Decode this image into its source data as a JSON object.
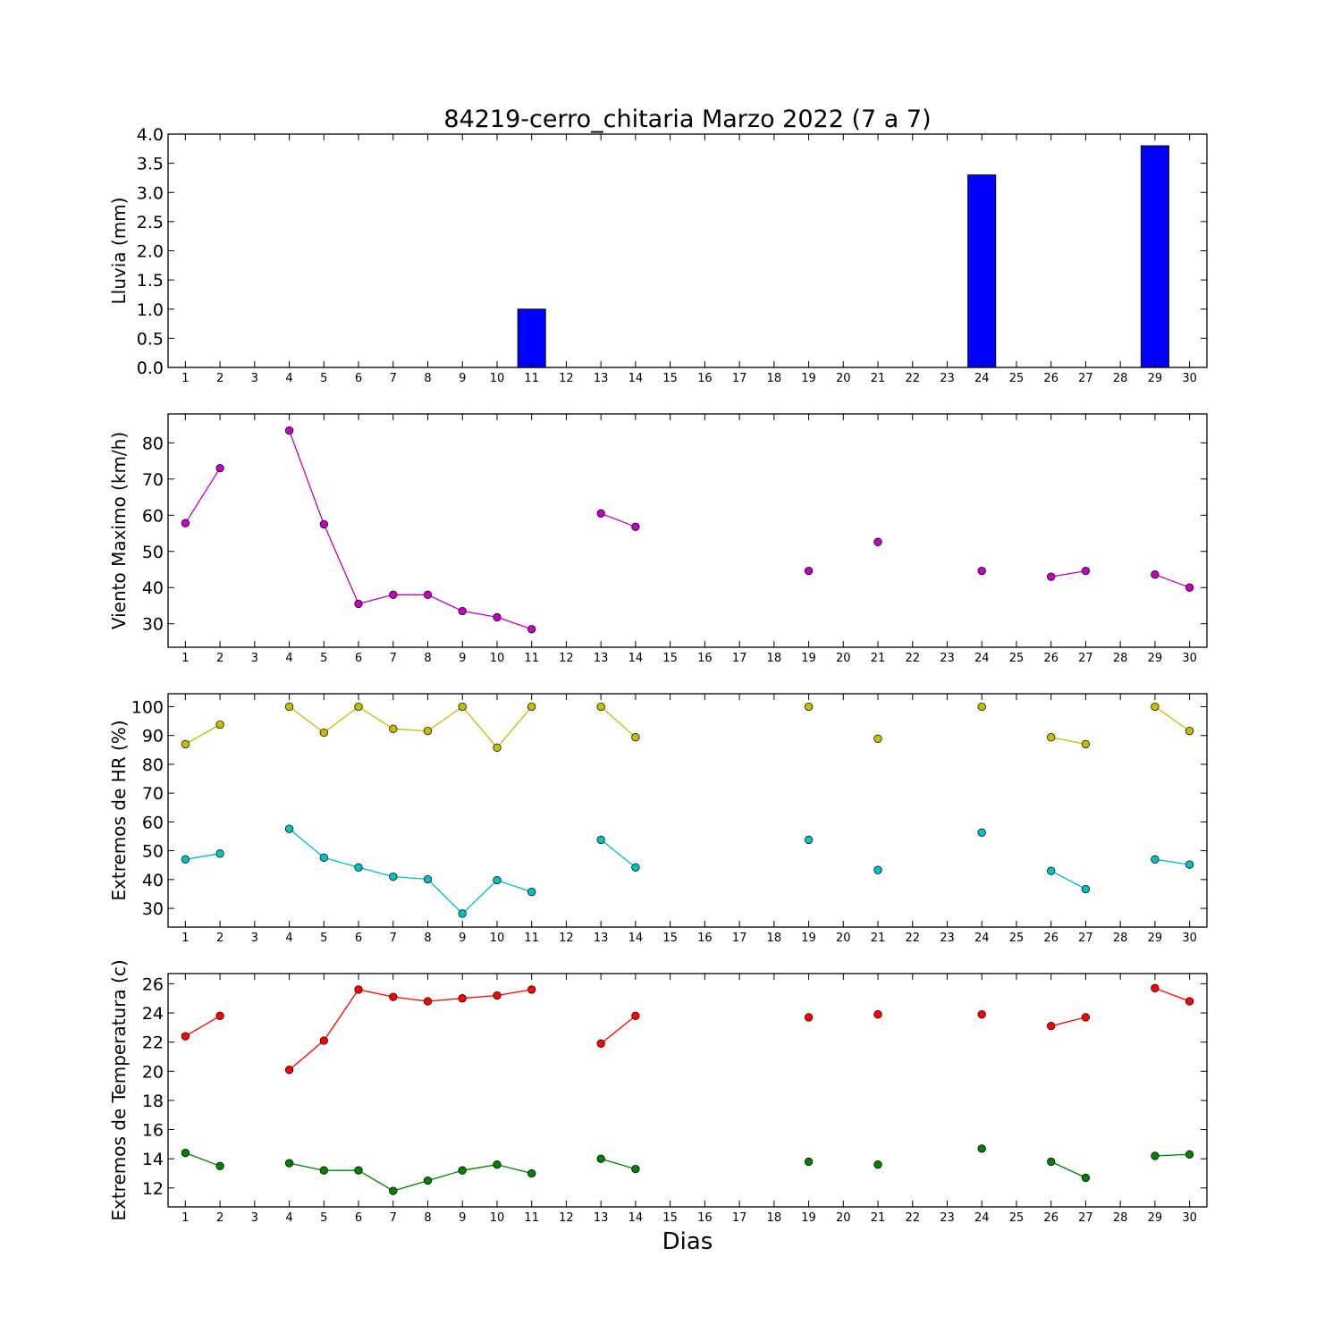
{
  "title": "84219-cerro_chitaria Marzo 2022  (7 a 7)",
  "xlabel": "Dias",
  "chart_data": [
    {
      "type": "bar",
      "ylabel": "Lluvia (mm)",
      "ylim": [
        0,
        4.0
      ],
      "yticks": [
        0.0,
        0.5,
        1.0,
        1.5,
        2.0,
        2.5,
        3.0,
        3.5,
        4.0
      ],
      "ytick_labels": [
        "0.0",
        "0.5",
        "1.0",
        "1.5",
        "2.0",
        "2.5",
        "3.0",
        "3.5",
        "4.0"
      ],
      "x": [
        1,
        2,
        3,
        4,
        5,
        6,
        7,
        8,
        9,
        10,
        11,
        12,
        13,
        14,
        15,
        16,
        17,
        18,
        19,
        20,
        21,
        22,
        23,
        24,
        25,
        26,
        27,
        28,
        29,
        30
      ],
      "series": [
        {
          "color": "#0000ff",
          "values": [
            0,
            0,
            0,
            0,
            0,
            0,
            0,
            0,
            0,
            0,
            1.0,
            0,
            0,
            0,
            0,
            0,
            0,
            0,
            0,
            0,
            0,
            0,
            0,
            3.3,
            0,
            0,
            0,
            0,
            3.8,
            0
          ]
        }
      ]
    },
    {
      "type": "line",
      "ylabel": "Viento Maximo (km/h)",
      "ylim": [
        23.5,
        88
      ],
      "yticks": [
        30,
        40,
        50,
        60,
        70,
        80
      ],
      "ytick_labels": [
        "30",
        "40",
        "50",
        "60",
        "70",
        "80"
      ],
      "x": [
        1,
        2,
        3,
        4,
        5,
        6,
        7,
        8,
        9,
        10,
        11,
        12,
        13,
        14,
        15,
        16,
        17,
        18,
        19,
        20,
        21,
        22,
        23,
        24,
        25,
        26,
        27,
        28,
        29,
        30
      ],
      "series": [
        {
          "color": "#bf00bf",
          "values": [
            57.8,
            73.0,
            null,
            83.4,
            57.5,
            35.5,
            38.0,
            38.0,
            33.5,
            31.8,
            28.5,
            null,
            60.5,
            56.8,
            null,
            null,
            null,
            null,
            44.6,
            null,
            52.6,
            null,
            null,
            44.6,
            null,
            43.0,
            44.6,
            null,
            43.6,
            40.0
          ]
        }
      ]
    },
    {
      "type": "line",
      "ylabel": "Extremos de HR (%)",
      "ylim": [
        23.5,
        104.5
      ],
      "yticks": [
        30,
        40,
        50,
        60,
        70,
        80,
        90,
        100
      ],
      "ytick_labels": [
        "30",
        "40",
        "50",
        "60",
        "70",
        "80",
        "90",
        "100"
      ],
      "x": [
        1,
        2,
        3,
        4,
        5,
        6,
        7,
        8,
        9,
        10,
        11,
        12,
        13,
        14,
        15,
        16,
        17,
        18,
        19,
        20,
        21,
        22,
        23,
        24,
        25,
        26,
        27,
        28,
        29,
        30
      ],
      "series": [
        {
          "color": "#bfbf00",
          "values": [
            87.0,
            93.8,
            null,
            100,
            91.0,
            100,
            92.3,
            91.6,
            100,
            85.8,
            100,
            null,
            100,
            89.4,
            null,
            null,
            null,
            null,
            100,
            null,
            88.9,
            null,
            null,
            100,
            null,
            89.4,
            87.0,
            null,
            100,
            91.6
          ]
        },
        {
          "color": "#00bfbf",
          "values": [
            47.0,
            49.0,
            null,
            57.6,
            47.6,
            44.2,
            41.0,
            40.1,
            28.2,
            39.8,
            35.7,
            null,
            53.8,
            44.2,
            null,
            null,
            null,
            null,
            53.8,
            null,
            43.3,
            null,
            null,
            56.3,
            null,
            43.0,
            36.7,
            null,
            47.0,
            45.2
          ]
        }
      ]
    },
    {
      "type": "line",
      "ylabel": "Extremos de Temperatura (c)",
      "ylim": [
        10.7,
        26.7
      ],
      "yticks": [
        12,
        14,
        16,
        18,
        20,
        22,
        24,
        26
      ],
      "ytick_labels": [
        "12",
        "14",
        "16",
        "18",
        "20",
        "22",
        "24",
        "26"
      ],
      "x": [
        1,
        2,
        3,
        4,
        5,
        6,
        7,
        8,
        9,
        10,
        11,
        12,
        13,
        14,
        15,
        16,
        17,
        18,
        19,
        20,
        21,
        22,
        23,
        24,
        25,
        26,
        27,
        28,
        29,
        30
      ],
      "series": [
        {
          "color": "#ff0000",
          "values": [
            22.4,
            23.8,
            null,
            20.1,
            22.1,
            25.6,
            25.1,
            24.8,
            25.0,
            25.2,
            25.6,
            null,
            21.9,
            23.8,
            null,
            null,
            null,
            null,
            23.7,
            null,
            23.9,
            null,
            null,
            23.9,
            null,
            23.1,
            23.7,
            null,
            25.7,
            24.8
          ]
        },
        {
          "color": "#008000",
          "values": [
            14.4,
            13.5,
            null,
            13.7,
            13.2,
            13.2,
            11.8,
            12.5,
            13.2,
            13.6,
            13.0,
            null,
            14.0,
            13.3,
            null,
            null,
            null,
            null,
            13.8,
            null,
            13.6,
            null,
            null,
            14.7,
            null,
            13.8,
            12.7,
            null,
            14.2,
            14.3
          ]
        }
      ]
    }
  ]
}
